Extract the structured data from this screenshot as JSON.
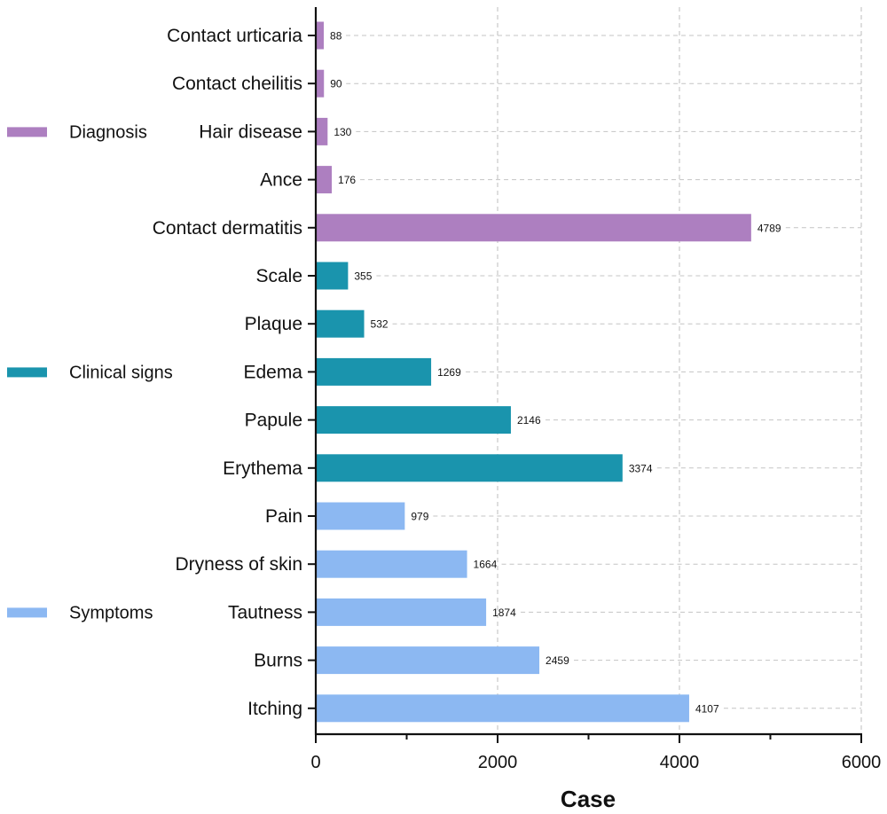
{
  "chart_data": {
    "type": "bar",
    "orientation": "horizontal",
    "title": "",
    "xlabel": "Case",
    "ylabel": "",
    "xlim": [
      0,
      6000
    ],
    "xticks": [
      0,
      2000,
      4000,
      6000
    ],
    "xticks_minor": [
      1000,
      3000,
      5000
    ],
    "grid": true,
    "legend_position": "left",
    "categories": [
      "Contact urticaria",
      "Contact cheilitis",
      "Hair disease",
      "Ance",
      "Contact dermatitis",
      "Scale",
      "Plaque",
      "Edema",
      "Papule",
      "Erythema",
      "Pain",
      "Dryness of skin",
      "Tautness",
      "Burns",
      "Itching"
    ],
    "series": [
      {
        "name": "Diagnosis",
        "color": "#ad7fc0",
        "categories": [
          "Contact urticaria",
          "Contact cheilitis",
          "Hair disease",
          "Ance",
          "Contact dermatitis"
        ],
        "values": [
          88,
          90,
          130,
          176,
          4789
        ]
      },
      {
        "name": "Clinical signs",
        "color": "#1a94ad",
        "categories": [
          "Scale",
          "Plaque",
          "Edema",
          "Papule",
          "Erythema"
        ],
        "values": [
          355,
          532,
          1269,
          2146,
          3374
        ]
      },
      {
        "name": "Symptoms",
        "color": "#8cb8f2",
        "categories": [
          "Pain",
          "Dryness of skin",
          "Tautness",
          "Burns",
          "Itching"
        ],
        "values": [
          979,
          1664,
          1874,
          2459,
          4107
        ]
      }
    ]
  }
}
